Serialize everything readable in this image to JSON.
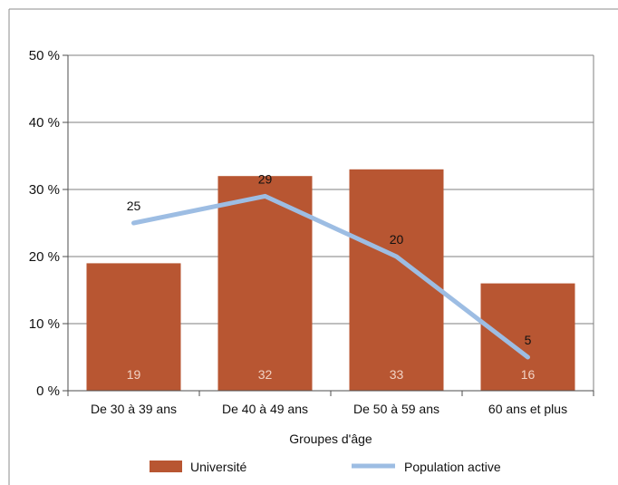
{
  "chart_data": {
    "type": "bar",
    "categories": [
      "De 30 à 39 ans",
      "De 40 à 49 ans",
      "De 50 à 59 ans",
      "60 ans et plus"
    ],
    "series": [
      {
        "name": "Université",
        "type": "bar",
        "values": [
          19,
          32,
          33,
          16
        ],
        "color": "#b85632"
      },
      {
        "name": "Population active",
        "type": "line",
        "values": [
          25,
          29,
          20,
          5
        ],
        "color": "#9dbde3"
      }
    ],
    "xlabel": "Groupes d'âge",
    "ylabel": "",
    "ylim": [
      0,
      50
    ],
    "yticks": [
      0,
      10,
      20,
      30,
      40,
      50
    ],
    "ytick_labels": [
      "0 %",
      "10 %",
      "20 %",
      "30 %",
      "40 %",
      "50 %"
    ],
    "grid": true,
    "legend_position": "bottom"
  },
  "colors": {
    "grid": "#7f7f7f",
    "axis": "#4d4d4d",
    "bar_label": "#f1d2c4",
    "text": "#111111"
  }
}
